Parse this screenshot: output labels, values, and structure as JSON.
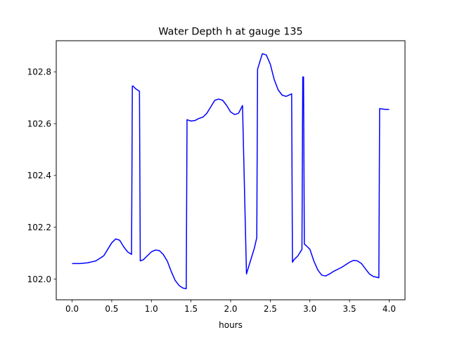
{
  "chart_data": {
    "type": "line",
    "title": "Water Depth h at gauge 135",
    "xlabel": "hours",
    "ylabel": "",
    "xlim": [
      -0.2,
      4.2
    ],
    "ylim": [
      101.92,
      102.92
    ],
    "xticks": [
      0.0,
      0.5,
      1.0,
      1.5,
      2.0,
      2.5,
      3.0,
      3.5,
      4.0
    ],
    "xtick_labels": [
      "0.0",
      "0.5",
      "1.0",
      "1.5",
      "2.0",
      "2.5",
      "3.0",
      "3.5",
      "4.0"
    ],
    "yticks": [
      102.0,
      102.2,
      102.4,
      102.6,
      102.8
    ],
    "ytick_labels": [
      "102.0",
      "102.2",
      "102.4",
      "102.6",
      "102.8"
    ],
    "grid": false,
    "color": "#0000ff",
    "series": [
      {
        "x": [
          0.0,
          0.1,
          0.2,
          0.3,
          0.4,
          0.45,
          0.5,
          0.55,
          0.6,
          0.65,
          0.7,
          0.75,
          0.76,
          0.77,
          0.8,
          0.85,
          0.86,
          0.9,
          0.95,
          1.0,
          1.05,
          1.1,
          1.15,
          1.2,
          1.25,
          1.3,
          1.35,
          1.4,
          1.44,
          1.45,
          1.5,
          1.55,
          1.6,
          1.65,
          1.7,
          1.75,
          1.8,
          1.85,
          1.9,
          1.95,
          2.0,
          2.05,
          2.1,
          2.15,
          2.2,
          2.21,
          2.25,
          2.3,
          2.33,
          2.34,
          2.37,
          2.4,
          2.45,
          2.5,
          2.55,
          2.6,
          2.65,
          2.7,
          2.77,
          2.78,
          2.8,
          2.85,
          2.9,
          2.91,
          2.92,
          2.93,
          2.95,
          3.0,
          3.05,
          3.1,
          3.15,
          3.2,
          3.25,
          3.3,
          3.4,
          3.5,
          3.55,
          3.6,
          3.65,
          3.7,
          3.75,
          3.8,
          3.87,
          3.88,
          3.9,
          3.95,
          4.0
        ],
        "y": [
          102.06,
          102.06,
          102.063,
          102.07,
          102.09,
          102.115,
          102.14,
          102.155,
          102.15,
          102.125,
          102.105,
          102.095,
          102.745,
          102.745,
          102.735,
          102.725,
          102.07,
          102.075,
          102.09,
          102.105,
          102.112,
          102.11,
          102.095,
          102.07,
          102.03,
          101.995,
          101.975,
          101.965,
          101.963,
          102.615,
          102.61,
          102.612,
          102.62,
          102.625,
          102.64,
          102.665,
          102.69,
          102.695,
          102.69,
          102.67,
          102.645,
          102.635,
          102.64,
          102.67,
          102.02,
          102.03,
          102.07,
          102.12,
          102.16,
          102.81,
          102.84,
          102.87,
          102.865,
          102.83,
          102.77,
          102.73,
          102.71,
          102.705,
          102.715,
          102.065,
          102.075,
          102.09,
          102.115,
          102.78,
          102.78,
          102.135,
          102.13,
          102.115,
          102.07,
          102.035,
          102.015,
          102.012,
          102.02,
          102.03,
          102.045,
          102.065,
          102.072,
          102.07,
          102.06,
          102.04,
          102.02,
          102.01,
          102.005,
          102.658,
          102.657,
          102.655,
          102.655
        ]
      }
    ]
  }
}
